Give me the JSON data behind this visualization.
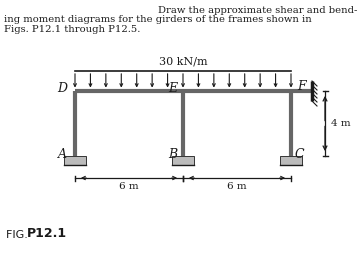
{
  "title_line1": "Draw the approximate shear and bend-",
  "title_line2": "ing moment diagrams for the girders of the frames shown in",
  "title_line3": "Figs. P12.1 through P12.5.",
  "fig_label": "FIG. P12.1",
  "load_label": "30 kN/m",
  "dim_label_h": "4 m",
  "dim_label_6m_left": "6 m",
  "dim_label_6m_right": "6 m",
  "node_D": "D",
  "node_E": "E",
  "node_F": "F",
  "node_A": "A",
  "node_B": "B",
  "node_C": "C",
  "bg_color": "#ffffff",
  "line_color": "#1a1a1a",
  "frame_color": "#666666",
  "support_color": "#bbbbbb"
}
